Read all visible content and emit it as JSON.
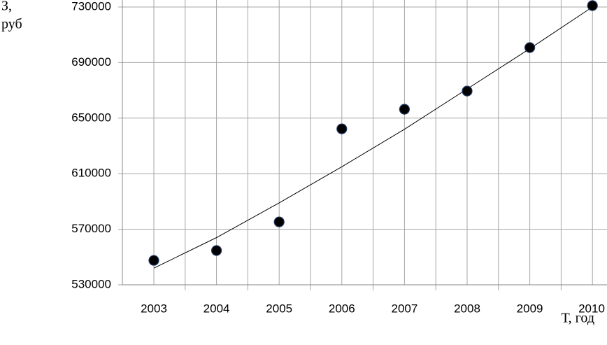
{
  "chart_data": {
    "type": "scatter",
    "y_label": [
      "З,",
      "руб"
    ],
    "x_label": "Т, год",
    "categories": [
      "2003",
      "2004",
      "2005",
      "2006",
      "2007",
      "2008",
      "2009",
      "2010"
    ],
    "series": [
      {
        "color": "#000000",
        "values": [
          547600,
          554700,
          575300,
          642300,
          656400,
          669500,
          700800,
          731000
        ]
      }
    ],
    "trend": {
      "color": "#000000",
      "values": [
        542000,
        564000,
        589000,
        615000,
        642000,
        671000,
        700000,
        730000
      ]
    },
    "ylim": [
      530000,
      730000
    ],
    "yticks": [
      530000,
      570000,
      610000,
      650000,
      690000,
      730000
    ],
    "grid": true
  }
}
